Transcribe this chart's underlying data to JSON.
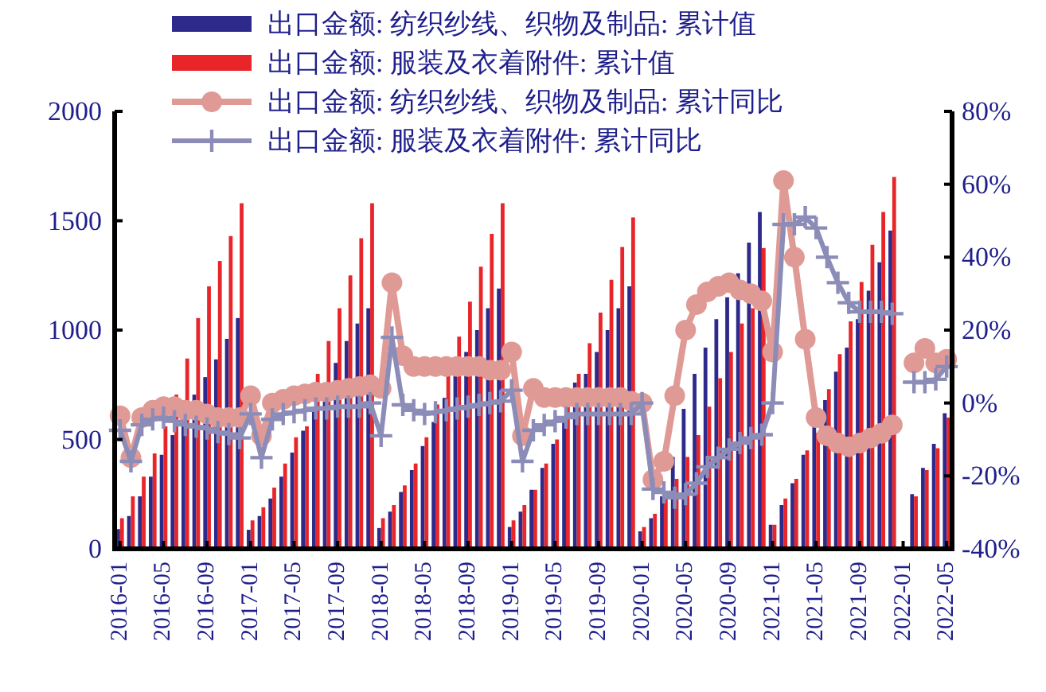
{
  "chart_data": {
    "type": "bar",
    "legend": "top",
    "categories": [
      "2016-01",
      null,
      null,
      null,
      "2016-05",
      null,
      null,
      null,
      "2016-09",
      null,
      null,
      null,
      "2017-01",
      null,
      null,
      null,
      "2017-05",
      null,
      null,
      null,
      "2017-09",
      null,
      null,
      null,
      "2018-01",
      null,
      null,
      null,
      "2018-05",
      null,
      null,
      null,
      "2018-09",
      null,
      null,
      null,
      "2019-01",
      null,
      null,
      null,
      "2019-05",
      null,
      null,
      null,
      "2019-09",
      null,
      null,
      null,
      "2020-01",
      null,
      null,
      null,
      "2020-05",
      null,
      null,
      null,
      "2020-09",
      null,
      null,
      null,
      "2021-01",
      null,
      null,
      null,
      "2021-05",
      null,
      null,
      null,
      "2021-09",
      null,
      null,
      null,
      "2022-01",
      null,
      null,
      null,
      "2022-05"
    ],
    "ylim": [
      0,
      2000
    ],
    "yticks": [
      0,
      500,
      1000,
      1500,
      2000
    ],
    "y2lim": [
      -40,
      80
    ],
    "y2ticks": [
      {
        "value": -40,
        "label": "-40%"
      },
      {
        "value": -20,
        "label": "-20%"
      },
      {
        "value": 0,
        "label": "0%"
      },
      {
        "value": 20,
        "label": "20%"
      },
      {
        "value": 40,
        "label": "40%"
      },
      {
        "value": 60,
        "label": "60%"
      },
      {
        "value": 80,
        "label": "80%"
      }
    ],
    "series": [
      {
        "name": "出口金额: 纺织纱线、织物及制品: 累计值",
        "color": "#2e2a8c",
        "values": [
          90,
          150,
          240,
          330,
          430,
          520,
          610,
          705,
          785,
          866,
          960,
          1055,
          87,
          150,
          230,
          330,
          440,
          540,
          640,
          700,
          850,
          950,
          1030,
          1100,
          95,
          170,
          260,
          360,
          470,
          580,
          690,
          800,
          900,
          1000,
          1100,
          1190,
          100,
          170,
          270,
          370,
          480,
          590,
          760,
          800,
          900,
          1000,
          1100,
          1200,
          80,
          140,
          240,
          420,
          640,
          800,
          920,
          1050,
          1150,
          1260,
          1400,
          1540,
          110,
          200,
          300,
          430,
          560,
          680,
          810,
          920,
          1050,
          1180,
          1310,
          1455,
          null,
          250,
          370,
          480,
          620
        ]
      },
      {
        "name": "出口金额: 服装及衣着附件: 累计值",
        "color": "#e8262a",
        "values": [
          140,
          240,
          330,
          436,
          560,
          705,
          870,
          1055,
          1200,
          1316,
          1430,
          1580,
          130,
          190,
          280,
          390,
          510,
          560,
          800,
          950,
          1100,
          1250,
          1420,
          1580,
          140,
          200,
          290,
          390,
          510,
          660,
          810,
          970,
          1130,
          1290,
          1440,
          1580,
          130,
          200,
          270,
          390,
          500,
          650,
          800,
          940,
          1080,
          1230,
          1380,
          1515,
          100,
          160,
          230,
          320,
          420,
          520,
          650,
          780,
          900,
          1030,
          1100,
          1375,
          110,
          230,
          320,
          450,
          530,
          730,
          890,
          1040,
          1220,
          1390,
          1540,
          1700,
          null,
          240,
          360,
          460,
          600
        ]
      },
      {
        "name": "出口金额: 纺织纱线、织物及制品: 累计同比",
        "type": "line",
        "axis": "y2",
        "marker": "circle",
        "color": "#e09a96",
        "values": [
          -3.5,
          -15,
          -4,
          -2,
          -1,
          -1,
          -2,
          -2,
          -3,
          -4,
          -4,
          -4,
          2,
          -9,
          0,
          1,
          2,
          2.5,
          3,
          3,
          3.5,
          4,
          4.5,
          5,
          4,
          33,
          13,
          10,
          10,
          10,
          10,
          10,
          10,
          10,
          9,
          9,
          14,
          -9,
          4,
          1.5,
          1.5,
          1.5,
          1.5,
          1.5,
          1.5,
          1.5,
          1.5,
          0.5,
          0,
          -21,
          -16,
          2,
          20,
          27,
          30.5,
          32,
          33,
          31,
          30,
          28,
          14,
          61,
          40,
          17.5,
          -4,
          -9,
          -11,
          -12,
          -11,
          -9.6,
          -8.3,
          -6,
          null,
          11,
          15,
          11,
          12
        ]
      },
      {
        "name": "出口金额: 服装及衣着附件: 累计同比",
        "type": "line",
        "axis": "y2",
        "marker": "cross",
        "color": "#8c8cb8",
        "values": [
          -7.5,
          -16,
          -6,
          -4.5,
          -4,
          -5,
          -6,
          -6.5,
          -7,
          -8,
          -8.5,
          -9.6,
          -3,
          -15,
          -4.5,
          -3,
          -2.5,
          -2,
          -1.5,
          -1.5,
          -1,
          -1,
          -1,
          0,
          -9,
          18,
          -0.5,
          -2,
          -3,
          -2.5,
          -2,
          -1.5,
          -1,
          -0.5,
          0,
          0.5,
          3.5,
          -16,
          -7.5,
          -6,
          -5,
          -4,
          -3,
          -3,
          -3,
          -3,
          -3,
          -3,
          0,
          -23.6,
          -24.5,
          -26,
          -25,
          -22,
          -17.5,
          -15,
          -12.7,
          -11,
          -9.6,
          -8.7,
          0,
          49,
          49,
          51,
          48,
          40,
          33,
          27.5,
          25,
          25,
          25,
          24.5,
          null,
          5.7,
          5.7,
          6.5,
          10
        ]
      }
    ]
  }
}
